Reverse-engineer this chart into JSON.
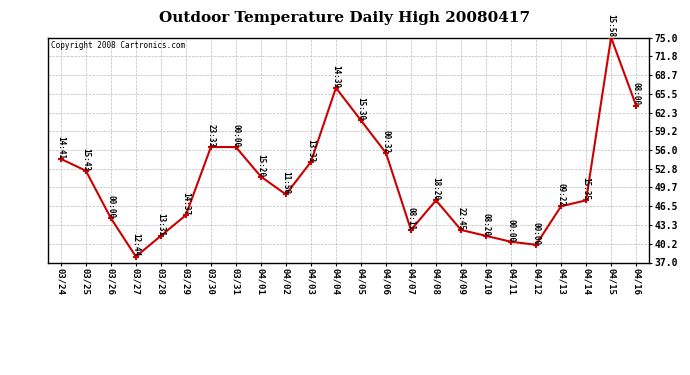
{
  "title": "Outdoor Temperature Daily High 20080417",
  "copyright": "Copyright 2008 Cartronics.com",
  "background_color": "#ffffff",
  "line_color": "#cc0000",
  "marker_color": "#cc0000",
  "grid_color": "#bbbbbb",
  "text_color": "#000000",
  "ylim": [
    37.0,
    75.0
  ],
  "yticks": [
    37.0,
    40.2,
    43.3,
    46.5,
    49.7,
    52.8,
    56.0,
    59.2,
    62.3,
    65.5,
    68.7,
    71.8,
    75.0
  ],
  "x_labels": [
    "03/24",
    "03/25",
    "03/26",
    "03/27",
    "03/28",
    "03/29",
    "03/30",
    "03/31",
    "04/01",
    "04/02",
    "04/03",
    "04/04",
    "04/05",
    "04/06",
    "04/07",
    "04/08",
    "04/09",
    "04/10",
    "04/11",
    "04/12",
    "04/13",
    "04/14",
    "04/15",
    "04/16"
  ],
  "y_values": [
    54.5,
    52.5,
    44.5,
    38.0,
    41.5,
    45.0,
    56.5,
    56.5,
    51.5,
    48.5,
    54.0,
    66.5,
    61.0,
    55.5,
    42.5,
    47.5,
    42.5,
    41.5,
    40.5,
    40.0,
    46.5,
    47.5,
    75.0,
    63.5
  ],
  "point_labels": [
    "14:41",
    "15:43",
    "00:00",
    "12:44",
    "13:31",
    "14:37",
    "23:33",
    "00:00",
    "15:20",
    "11:58",
    "13:33",
    "14:39",
    "15:30",
    "00:32",
    "08:11",
    "18:20",
    "22:45",
    "08:20",
    "00:00",
    "00:00",
    "09:22",
    "15:35",
    "15:58",
    "08:00"
  ]
}
